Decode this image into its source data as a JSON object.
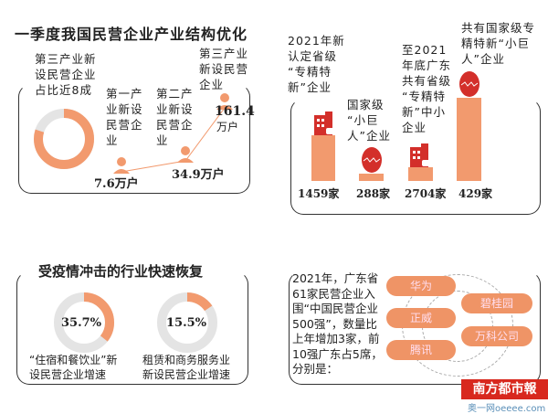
{
  "panel1": {
    "title": "一季度我国民营企业产业结构优化",
    "donut_label": [
      "第三产业新",
      "设民营企业",
      "占比近8成"
    ],
    "donut_share": 0.8,
    "label1": [
      "第一产",
      "业新设",
      "民营企",
      "业"
    ],
    "label2": [
      "第二产",
      "业新设",
      "民营企",
      "业"
    ],
    "label3": [
      "第三产业",
      "新设民营",
      "企业"
    ],
    "v1": "7.6万户",
    "v2": "34.9万户",
    "v3": "161.4",
    "v3_unit": "万户"
  },
  "panel2": {
    "t1": [
      "2021年新",
      "认定省级",
      "“专精特",
      "新”企业"
    ],
    "t2": [
      "国家级",
      "“小巨",
      "人”企业"
    ],
    "t3": [
      "至2021",
      "年底广东",
      "共有省级",
      "“专精特",
      "新”中小",
      "企业"
    ],
    "t4": [
      "共有国家级专",
      "精特新“小巨",
      "人”企业"
    ],
    "v1": "1459家",
    "v2": "288家",
    "v3": "2704家",
    "v4": "429家"
  },
  "panel3": {
    "title": "受疫情冲击的行业快速恢复",
    "p1": "35.7%",
    "p2": "15.5%",
    "p1_value": 35.7,
    "p2_value": 15.5,
    "l1": [
      "“住宿和餐饮业”新",
      "设民营企业增速"
    ],
    "l2": [
      "租赁和商务服务业",
      "新设民营企业增速"
    ]
  },
  "panel4": {
    "text": [
      "2021年，广东省",
      "61家民营企业入",
      "围“中国民营企业",
      "500强”，数量比",
      "上年增加3家，前",
      "10强广东占5席，",
      "分别是："
    ],
    "companies": [
      "华为",
      "正威",
      "腾讯",
      "碧桂园",
      "万科公司"
    ]
  },
  "logo": {
    "name": "南方都市報",
    "site": "奥一网oeeee.com"
  },
  "colors": {
    "orange": "#f29a6e",
    "red": "#d32f2a",
    "gray": "#e4e4e4"
  }
}
